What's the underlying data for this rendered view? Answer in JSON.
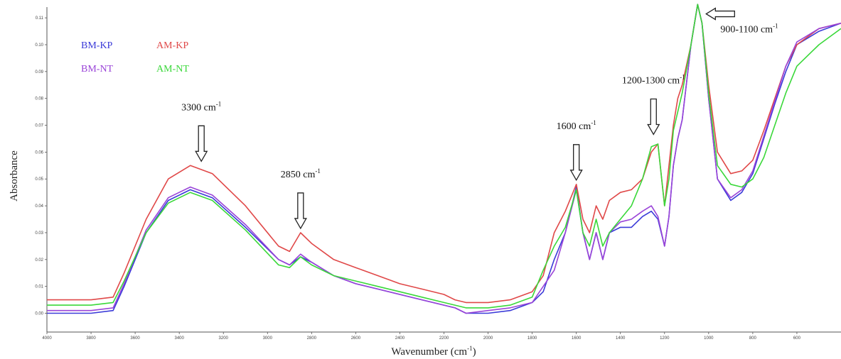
{
  "chart_data": {
    "type": "line",
    "title": "",
    "xlabel": "Wavenumber (cm",
    "xlabel_sup": "-1",
    "xlabel_tail": ")",
    "ylabel": "Absorbance",
    "xlim": [
      4000,
      400
    ],
    "x_reversed": true,
    "ylim": [
      -0.007,
      0.114
    ],
    "x_ticks": [
      "4000",
      "3800",
      "3600",
      "3400",
      "3200",
      "3000",
      "2800",
      "2600",
      "2400",
      "2200",
      "2000",
      "1800",
      "1600",
      "1400",
      "1200",
      "1000",
      "800",
      "600"
    ],
    "y_ticks": [
      "0.11",
      "0.10",
      "0.09",
      "0.08",
      "0.07",
      "0.06",
      "0.05",
      "0.04",
      "0.03",
      "0.02",
      "0.01",
      "0.00"
    ],
    "legend": {
      "placement": "top-left",
      "entries": [
        {
          "name": "BM-KP",
          "color": "#3a3ad8"
        },
        {
          "name": "AM-KP",
          "color": "#e04848"
        },
        {
          "name": "BM-NT",
          "color": "#9a44d8"
        },
        {
          "name": "AM-NT",
          "color": "#3ad83a"
        }
      ]
    },
    "series": [
      {
        "name": "BM-KP",
        "color": "#3a3ad8",
        "points": [
          [
            4000,
            0.0
          ],
          [
            3800,
            0.0
          ],
          [
            3700,
            0.001
          ],
          [
            3650,
            0.01
          ],
          [
            3550,
            0.03
          ],
          [
            3450,
            0.042
          ],
          [
            3350,
            0.046
          ],
          [
            3250,
            0.043
          ],
          [
            3100,
            0.032
          ],
          [
            2950,
            0.02
          ],
          [
            2900,
            0.018
          ],
          [
            2850,
            0.021
          ],
          [
            2800,
            0.019
          ],
          [
            2700,
            0.014
          ],
          [
            2600,
            0.011
          ],
          [
            2500,
            0.009
          ],
          [
            2400,
            0.007
          ],
          [
            2300,
            0.005
          ],
          [
            2200,
            0.003
          ],
          [
            2150,
            0.002
          ],
          [
            2100,
            0.0
          ],
          [
            2000,
            0.0
          ],
          [
            1900,
            0.001
          ],
          [
            1800,
            0.004
          ],
          [
            1750,
            0.008
          ],
          [
            1700,
            0.02
          ],
          [
            1650,
            0.03
          ],
          [
            1600,
            0.047
          ],
          [
            1570,
            0.03
          ],
          [
            1540,
            0.02
          ],
          [
            1510,
            0.03
          ],
          [
            1480,
            0.02
          ],
          [
            1450,
            0.03
          ],
          [
            1400,
            0.032
          ],
          [
            1350,
            0.032
          ],
          [
            1300,
            0.036
          ],
          [
            1260,
            0.038
          ],
          [
            1230,
            0.035
          ],
          [
            1200,
            0.025
          ],
          [
            1180,
            0.036
          ],
          [
            1160,
            0.055
          ],
          [
            1140,
            0.065
          ],
          [
            1120,
            0.072
          ],
          [
            1080,
            0.1
          ],
          [
            1050,
            0.115
          ],
          [
            1030,
            0.108
          ],
          [
            1000,
            0.08
          ],
          [
            960,
            0.05
          ],
          [
            900,
            0.042
          ],
          [
            850,
            0.045
          ],
          [
            800,
            0.052
          ],
          [
            750,
            0.065
          ],
          [
            700,
            0.078
          ],
          [
            650,
            0.09
          ],
          [
            600,
            0.1
          ],
          [
            500,
            0.105
          ],
          [
            400,
            0.108
          ]
        ]
      },
      {
        "name": "AM-KP",
        "color": "#e04848",
        "points": [
          [
            4000,
            0.005
          ],
          [
            3800,
            0.005
          ],
          [
            3700,
            0.006
          ],
          [
            3650,
            0.015
          ],
          [
            3550,
            0.035
          ],
          [
            3450,
            0.05
          ],
          [
            3350,
            0.055
          ],
          [
            3250,
            0.052
          ],
          [
            3100,
            0.04
          ],
          [
            2950,
            0.025
          ],
          [
            2900,
            0.023
          ],
          [
            2850,
            0.03
          ],
          [
            2800,
            0.026
          ],
          [
            2700,
            0.02
          ],
          [
            2600,
            0.017
          ],
          [
            2500,
            0.014
          ],
          [
            2400,
            0.011
          ],
          [
            2300,
            0.009
          ],
          [
            2200,
            0.007
          ],
          [
            2150,
            0.005
          ],
          [
            2100,
            0.004
          ],
          [
            2000,
            0.004
          ],
          [
            1900,
            0.005
          ],
          [
            1800,
            0.008
          ],
          [
            1750,
            0.014
          ],
          [
            1700,
            0.03
          ],
          [
            1650,
            0.038
          ],
          [
            1600,
            0.048
          ],
          [
            1570,
            0.035
          ],
          [
            1540,
            0.03
          ],
          [
            1510,
            0.04
          ],
          [
            1480,
            0.035
          ],
          [
            1450,
            0.042
          ],
          [
            1400,
            0.045
          ],
          [
            1350,
            0.046
          ],
          [
            1300,
            0.05
          ],
          [
            1260,
            0.06
          ],
          [
            1230,
            0.063
          ],
          [
            1200,
            0.04
          ],
          [
            1180,
            0.055
          ],
          [
            1160,
            0.07
          ],
          [
            1140,
            0.08
          ],
          [
            1120,
            0.085
          ],
          [
            1080,
            0.1
          ],
          [
            1050,
            0.115
          ],
          [
            1030,
            0.108
          ],
          [
            1000,
            0.085
          ],
          [
            960,
            0.06
          ],
          [
            900,
            0.052
          ],
          [
            850,
            0.053
          ],
          [
            800,
            0.057
          ],
          [
            750,
            0.068
          ],
          [
            700,
            0.08
          ],
          [
            650,
            0.092
          ],
          [
            600,
            0.1
          ],
          [
            500,
            0.106
          ],
          [
            400,
            0.108
          ]
        ]
      },
      {
        "name": "BM-NT",
        "color": "#9a44d8",
        "points": [
          [
            4000,
            0.001
          ],
          [
            3800,
            0.001
          ],
          [
            3700,
            0.002
          ],
          [
            3650,
            0.011
          ],
          [
            3550,
            0.031
          ],
          [
            3450,
            0.043
          ],
          [
            3350,
            0.047
          ],
          [
            3250,
            0.044
          ],
          [
            3100,
            0.033
          ],
          [
            2950,
            0.02
          ],
          [
            2900,
            0.018
          ],
          [
            2850,
            0.022
          ],
          [
            2800,
            0.019
          ],
          [
            2700,
            0.014
          ],
          [
            2600,
            0.011
          ],
          [
            2500,
            0.009
          ],
          [
            2400,
            0.007
          ],
          [
            2300,
            0.005
          ],
          [
            2200,
            0.003
          ],
          [
            2150,
            0.002
          ],
          [
            2100,
            0.0
          ],
          [
            2000,
            0.001
          ],
          [
            1900,
            0.002
          ],
          [
            1800,
            0.004
          ],
          [
            1750,
            0.01
          ],
          [
            1700,
            0.016
          ],
          [
            1650,
            0.03
          ],
          [
            1600,
            0.046
          ],
          [
            1570,
            0.03
          ],
          [
            1540,
            0.02
          ],
          [
            1510,
            0.03
          ],
          [
            1480,
            0.02
          ],
          [
            1450,
            0.03
          ],
          [
            1400,
            0.034
          ],
          [
            1350,
            0.035
          ],
          [
            1300,
            0.038
          ],
          [
            1260,
            0.04
          ],
          [
            1230,
            0.036
          ],
          [
            1200,
            0.025
          ],
          [
            1180,
            0.036
          ],
          [
            1160,
            0.055
          ],
          [
            1140,
            0.065
          ],
          [
            1120,
            0.072
          ],
          [
            1080,
            0.1
          ],
          [
            1050,
            0.115
          ],
          [
            1030,
            0.108
          ],
          [
            1000,
            0.08
          ],
          [
            960,
            0.05
          ],
          [
            900,
            0.043
          ],
          [
            850,
            0.046
          ],
          [
            800,
            0.053
          ],
          [
            750,
            0.066
          ],
          [
            700,
            0.079
          ],
          [
            650,
            0.092
          ],
          [
            600,
            0.101
          ],
          [
            500,
            0.106
          ],
          [
            400,
            0.108
          ]
        ]
      },
      {
        "name": "AM-NT",
        "color": "#3ad83a",
        "points": [
          [
            4000,
            0.003
          ],
          [
            3800,
            0.003
          ],
          [
            3700,
            0.004
          ],
          [
            3650,
            0.012
          ],
          [
            3550,
            0.03
          ],
          [
            3450,
            0.041
          ],
          [
            3350,
            0.045
          ],
          [
            3250,
            0.042
          ],
          [
            3100,
            0.031
          ],
          [
            2950,
            0.018
          ],
          [
            2900,
            0.017
          ],
          [
            2850,
            0.021
          ],
          [
            2800,
            0.018
          ],
          [
            2700,
            0.014
          ],
          [
            2600,
            0.012
          ],
          [
            2500,
            0.01
          ],
          [
            2400,
            0.008
          ],
          [
            2300,
            0.006
          ],
          [
            2200,
            0.004
          ],
          [
            2150,
            0.003
          ],
          [
            2100,
            0.002
          ],
          [
            2000,
            0.002
          ],
          [
            1900,
            0.003
          ],
          [
            1800,
            0.006
          ],
          [
            1750,
            0.016
          ],
          [
            1700,
            0.025
          ],
          [
            1650,
            0.032
          ],
          [
            1600,
            0.046
          ],
          [
            1570,
            0.03
          ],
          [
            1540,
            0.025
          ],
          [
            1510,
            0.035
          ],
          [
            1480,
            0.025
          ],
          [
            1450,
            0.03
          ],
          [
            1400,
            0.035
          ],
          [
            1350,
            0.04
          ],
          [
            1300,
            0.05
          ],
          [
            1260,
            0.062
          ],
          [
            1230,
            0.063
          ],
          [
            1200,
            0.04
          ],
          [
            1180,
            0.05
          ],
          [
            1160,
            0.068
          ],
          [
            1140,
            0.075
          ],
          [
            1120,
            0.082
          ],
          [
            1080,
            0.1
          ],
          [
            1050,
            0.115
          ],
          [
            1030,
            0.108
          ],
          [
            1000,
            0.082
          ],
          [
            960,
            0.055
          ],
          [
            900,
            0.048
          ],
          [
            850,
            0.047
          ],
          [
            800,
            0.05
          ],
          [
            750,
            0.058
          ],
          [
            700,
            0.07
          ],
          [
            650,
            0.082
          ],
          [
            600,
            0.092
          ],
          [
            500,
            0.1
          ],
          [
            400,
            0.106
          ]
        ]
      }
    ],
    "annotations": [
      {
        "text": "3300 cm",
        "sup": "-1",
        "x": 3300,
        "peak_y": 0.055,
        "direction": "down"
      },
      {
        "text": "2850 cm",
        "sup": "-1",
        "x": 2850,
        "peak_y": 0.03,
        "direction": "down"
      },
      {
        "text": "1600 cm",
        "sup": "-1",
        "x": 1600,
        "peak_y": 0.048,
        "direction": "down"
      },
      {
        "text": "1200-1300 cm",
        "sup": "-1",
        "x": 1250,
        "peak_y": 0.065,
        "direction": "down"
      },
      {
        "text": "900-1100 cm",
        "sup": "-1",
        "x": 1050,
        "peak_y": 0.112,
        "direction": "left"
      }
    ]
  }
}
